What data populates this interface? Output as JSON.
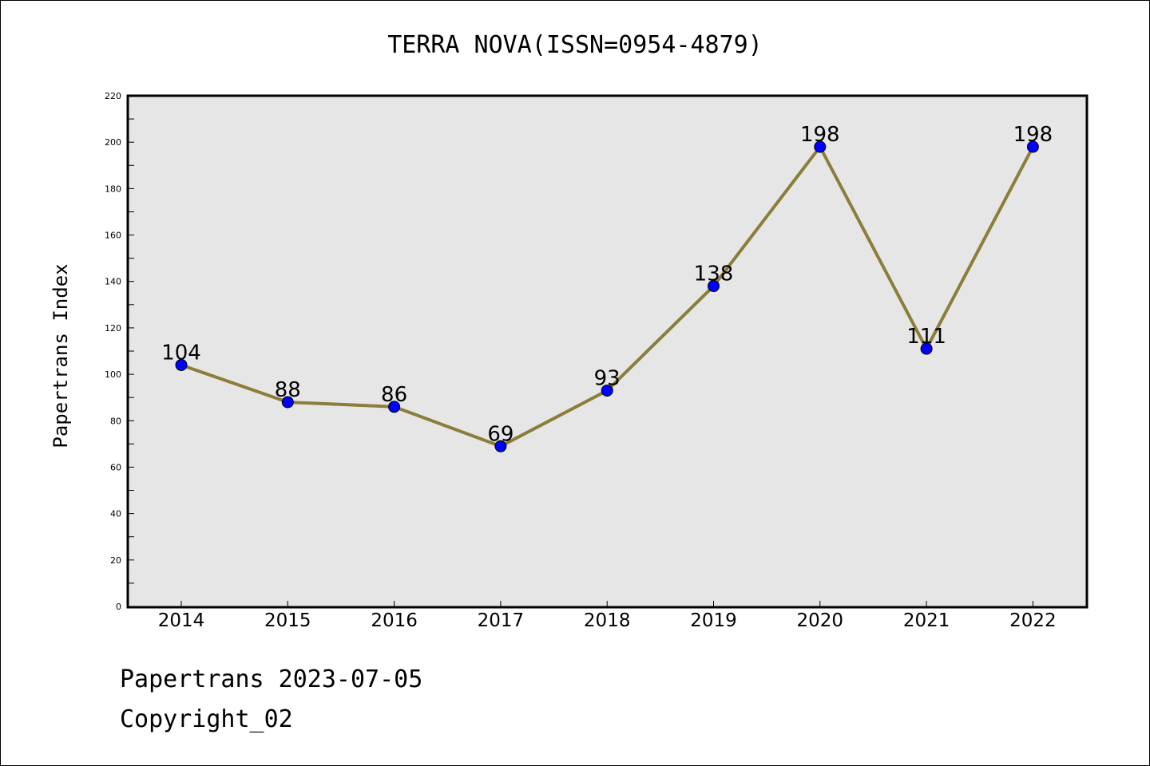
{
  "footer": {
    "line1": "Papertrans 2023-07-05",
    "line2": "Copyright_02"
  },
  "colors": {
    "plot_background": "#e6e6e6",
    "line": "#8b7d3a",
    "marker": "#0000ff"
  },
  "chart_data": {
    "type": "line",
    "title": "TERRA NOVA(ISSN=0954-4879)",
    "xlabel": "",
    "ylabel": "Papertrans Index",
    "categories": [
      "2014",
      "2015",
      "2016",
      "2017",
      "2018",
      "2019",
      "2020",
      "2021",
      "2022"
    ],
    "series": [
      {
        "values": [
          104,
          88,
          86,
          69,
          93,
          138,
          198,
          111,
          198
        ]
      }
    ],
    "data_labels": [
      "104",
      "88",
      "86",
      "69",
      "93",
      "138",
      "198",
      "111",
      "198"
    ],
    "ylim": [
      0,
      220
    ],
    "yticks": [
      0,
      20,
      40,
      60,
      80,
      100,
      120,
      140,
      160,
      180,
      200,
      220
    ],
    "grid": false,
    "legend": "none"
  }
}
